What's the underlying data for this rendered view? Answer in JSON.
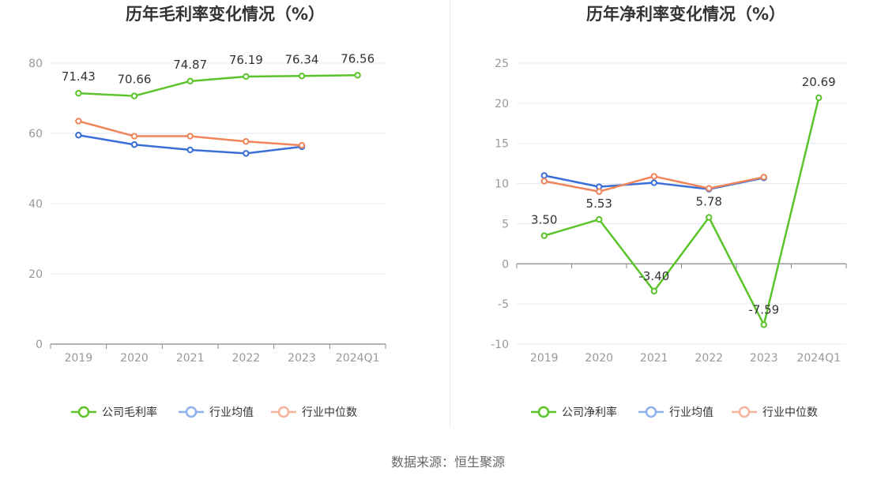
{
  "footer": "数据来源：恒生聚源",
  "chart_data": [
    {
      "type": "line",
      "title": "历年毛利率变化情况（%）",
      "categories": [
        "2019",
        "2020",
        "2021",
        "2022",
        "2023",
        "2024Q1"
      ],
      "ylim": [
        0,
        80
      ],
      "yticks": [
        0,
        20,
        40,
        60,
        80
      ],
      "grid": true,
      "legend_position": "bottom",
      "series": [
        {
          "name": "公司毛利率",
          "color": "#5ac42a",
          "values": [
            71.43,
            70.66,
            74.87,
            76.19,
            76.34,
            76.56
          ],
          "labels": [
            "71.43",
            "70.66",
            "74.87",
            "76.19",
            "76.34",
            "76.56"
          ]
        },
        {
          "name": "行业均值",
          "color": "#3a6fd8",
          "values": [
            59.5,
            56.8,
            55.3,
            54.3,
            56.2,
            null
          ]
        },
        {
          "name": "行业中位数",
          "color": "#f0845a",
          "values": [
            63.5,
            59.2,
            59.2,
            57.7,
            56.6,
            null
          ]
        }
      ]
    },
    {
      "type": "line",
      "title": "历年净利率变化情况（%）",
      "categories": [
        "2019",
        "2020",
        "2021",
        "2022",
        "2023",
        "2024Q1"
      ],
      "ylim": [
        -10,
        25
      ],
      "yticks": [
        -10,
        -5,
        0,
        5,
        10,
        15,
        20,
        25
      ],
      "grid": true,
      "legend_position": "bottom",
      "series": [
        {
          "name": "公司净利率",
          "color": "#5ac42a",
          "values": [
            3.5,
            5.53,
            -3.4,
            5.78,
            -7.59,
            20.69
          ],
          "labels": [
            "3.50",
            "5.53",
            "-3.40",
            "5.78",
            "-7.59",
            "20.69"
          ]
        },
        {
          "name": "行业均值",
          "color": "#3a6fd8",
          "values": [
            11.0,
            9.6,
            10.1,
            9.3,
            10.7,
            null
          ]
        },
        {
          "name": "行业中位数",
          "color": "#f0845a",
          "values": [
            10.3,
            9.0,
            10.9,
            9.4,
            10.8,
            null
          ]
        }
      ]
    }
  ]
}
